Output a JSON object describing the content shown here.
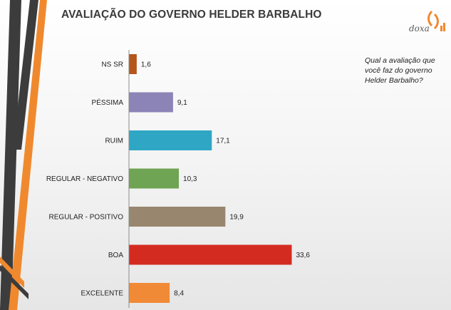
{
  "title": "AVALIAÇÃO DO GOVERNO HELDER BARBALHO",
  "question": "Qual a avaliação que você faz do governo Helder Barbalho?",
  "logo": {
    "text": "doxa",
    "icon": "doxa-logo-icon"
  },
  "colors": {
    "deco_dark": "#3c3c3c",
    "deco_orange": "#f0892e",
    "axis": "#8c8c8c"
  },
  "chart_data": {
    "type": "bar",
    "orientation": "horizontal",
    "categories": [
      "NS SR",
      "PÉSSIMA",
      "RUIM",
      "REGULAR - NEGATIVO",
      "REGULAR - POSITIVO",
      "BOA",
      "EXCELENTE"
    ],
    "values": [
      1.6,
      9.1,
      17.1,
      10.3,
      19.9,
      33.6,
      8.4
    ],
    "value_labels": [
      "1,6",
      "9,1",
      "17,1",
      "10,3",
      "19,9",
      "33,6",
      "8,4"
    ],
    "bar_colors": [
      "#b5561d",
      "#8c84b6",
      "#2fa7c4",
      "#6fa454",
      "#98866f",
      "#d42b20",
      "#f08a36"
    ],
    "xlim": [
      0,
      36
    ],
    "grid": false,
    "legend": "none"
  }
}
